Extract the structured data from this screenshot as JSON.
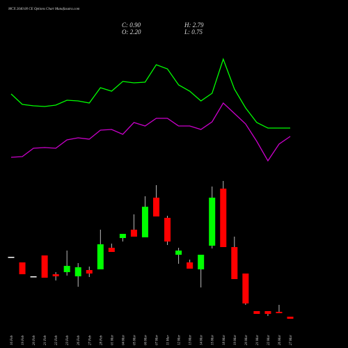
{
  "chart_data": {
    "type": "candlestick",
    "title": "MCX 2640.00 CE Options Chart Munafasutra.com",
    "ohlc_labels": {
      "close": "C: 0.90",
      "high": "H: 2.79",
      "open": "O: 2.20",
      "low": "L: 0.75"
    },
    "categories": [
      "16 Feb",
      "19 Feb",
      "20 Feb",
      "21 Feb",
      "22 Feb",
      "23 Feb",
      "26 Feb",
      "27 Feb",
      "28 Feb",
      "01 Mar",
      "04 Mar",
      "05 Mar",
      "06 Mar",
      "07 Mar",
      "11 Mar",
      "12 Mar",
      "13 Mar",
      "14 Mar",
      "15 Mar",
      "18 Mar",
      "19 Mar",
      "20 Mar",
      "21 Mar",
      "22 Mar",
      "26 Mar",
      "27 Mar"
    ],
    "open": [
      11.1,
      10.3,
      8.3,
      11.3,
      8.6,
      8.9,
      8.3,
      9.2,
      9.3,
      12.4,
      13.8,
      15.0,
      13.9,
      19.6,
      16.7,
      11.4,
      10.3,
      9.3,
      12.7,
      20.9,
      12.5,
      8.7,
      3.3,
      3.3,
      3.2,
      2.5
    ],
    "high": [
      11.1,
      10.3,
      8.3,
      11.3,
      8.9,
      12.0,
      10.2,
      9.7,
      15.0,
      13.0,
      14.4,
      17.2,
      19.8,
      21.4,
      17.0,
      12.4,
      10.7,
      11.4,
      21.2,
      22.0,
      14.0,
      8.7,
      3.3,
      3.3,
      4.2,
      2.5
    ],
    "low": [
      11.1,
      8.6,
      8.3,
      8.1,
      7.7,
      8.4,
      6.8,
      8.2,
      9.3,
      11.8,
      13.3,
      14.0,
      13.9,
      16.9,
      12.8,
      10.1,
      9.4,
      6.7,
      12.3,
      12.5,
      7.9,
      4.2,
      2.9,
      2.6,
      3.0,
      2.2
    ],
    "close": [
      11.1,
      8.6,
      8.3,
      8.1,
      8.3,
      9.8,
      9.6,
      8.7,
      12.9,
      11.8,
      14.4,
      14.0,
      18.3,
      16.9,
      13.3,
      12.0,
      9.4,
      11.4,
      19.6,
      12.5,
      7.9,
      4.4,
      2.9,
      2.9,
      3.0,
      2.2
    ],
    "up_color": "#00ff00",
    "down_color": "#ff0000",
    "lines": [
      {
        "color": "#00ff00",
        "values": [
          11.5,
          10.0,
          9.8,
          9.7,
          9.9,
          10.6,
          10.5,
          10.2,
          12.4,
          11.9,
          13.3,
          13.1,
          13.2,
          15.7,
          15.1,
          12.8,
          11.9,
          10.5,
          11.6,
          16.5,
          12.2,
          9.5,
          7.4,
          6.6,
          6.6,
          6.6
        ]
      },
      {
        "color": "#cc00cc",
        "values": [
          2.4,
          2.5,
          3.7,
          3.8,
          3.7,
          4.9,
          5.2,
          5.0,
          6.3,
          6.4,
          5.7,
          7.4,
          6.9,
          8.0,
          8.0,
          6.9,
          6.9,
          6.4,
          7.5,
          10.2,
          8.7,
          7.2,
          4.7,
          1.9,
          4.3,
          5.4
        ]
      }
    ]
  }
}
